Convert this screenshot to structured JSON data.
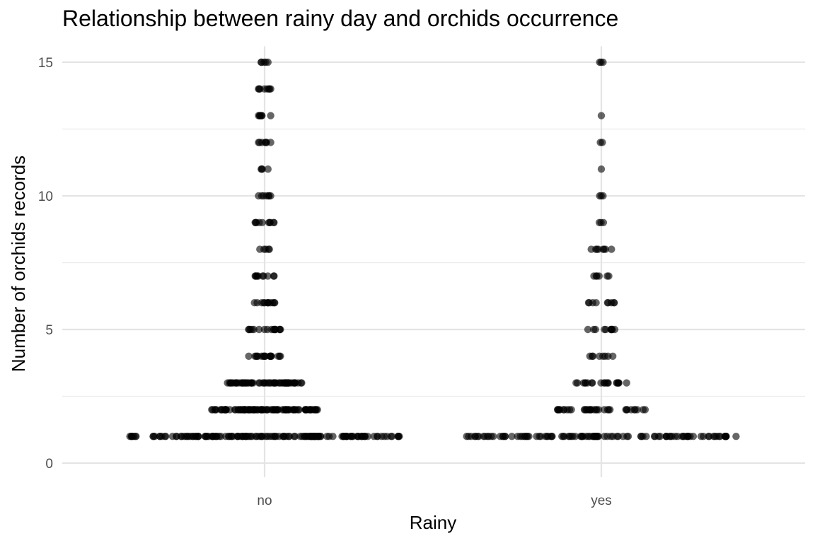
{
  "chart_data": {
    "type": "scatter",
    "title": "Relationship between rainy day and orchids occurrence",
    "xlabel": "Rainy",
    "ylabel": "Number of orchids records",
    "categories": [
      "no",
      "yes"
    ],
    "ylim": [
      0,
      15.6
    ],
    "yticks": [
      0,
      5,
      10,
      15
    ],
    "ygrid_minor": [
      2.5,
      7.5,
      12.5
    ],
    "grid": true,
    "legend": "none",
    "point_color": "#000000",
    "point_opacity": 0.6,
    "jitter_width": 0.4,
    "groups": [
      {
        "category": "no",
        "rows": [
          {
            "y": 1,
            "count": 150,
            "spread": 0.4
          },
          {
            "y": 2,
            "count": 90,
            "spread": 0.157
          },
          {
            "y": 3,
            "count": 60,
            "spread": 0.11
          },
          {
            "y": 4,
            "count": 18,
            "spread": 0.047
          },
          {
            "y": 5,
            "count": 16,
            "spread": 0.047
          },
          {
            "y": 6,
            "count": 12,
            "spread": 0.03
          },
          {
            "y": 7,
            "count": 10,
            "spread": 0.028
          },
          {
            "y": 8,
            "count": 5,
            "spread": 0.014
          },
          {
            "y": 9,
            "count": 10,
            "spread": 0.028
          },
          {
            "y": 10,
            "count": 7,
            "spread": 0.018
          },
          {
            "y": 11,
            "count": 4,
            "spread": 0.01
          },
          {
            "y": 12,
            "count": 7,
            "spread": 0.018
          },
          {
            "y": 13,
            "count": 7,
            "spread": 0.018
          },
          {
            "y": 14,
            "count": 8,
            "spread": 0.018
          },
          {
            "y": 15,
            "count": 5,
            "spread": 0.01
          }
        ]
      },
      {
        "category": "yes",
        "rows": [
          {
            "y": 1,
            "count": 110,
            "spread": 0.4
          },
          {
            "y": 2,
            "count": 35,
            "spread": 0.13
          },
          {
            "y": 3,
            "count": 20,
            "spread": 0.075
          },
          {
            "y": 4,
            "count": 8,
            "spread": 0.034
          },
          {
            "y": 5,
            "count": 10,
            "spread": 0.04
          },
          {
            "y": 6,
            "count": 9,
            "spread": 0.038
          },
          {
            "y": 7,
            "count": 6,
            "spread": 0.022
          },
          {
            "y": 8,
            "count": 8,
            "spread": 0.03
          },
          {
            "y": 9,
            "count": 3,
            "spread": 0.006
          },
          {
            "y": 10,
            "count": 3,
            "spread": 0.005
          },
          {
            "y": 11,
            "count": 1,
            "spread": 0.0
          },
          {
            "y": 12,
            "count": 2,
            "spread": 0.003
          },
          {
            "y": 13,
            "count": 1,
            "spread": 0.0
          },
          {
            "y": 14,
            "count": 0,
            "spread": 0.0
          },
          {
            "y": 15,
            "count": 3,
            "spread": 0.005
          }
        ]
      }
    ]
  }
}
